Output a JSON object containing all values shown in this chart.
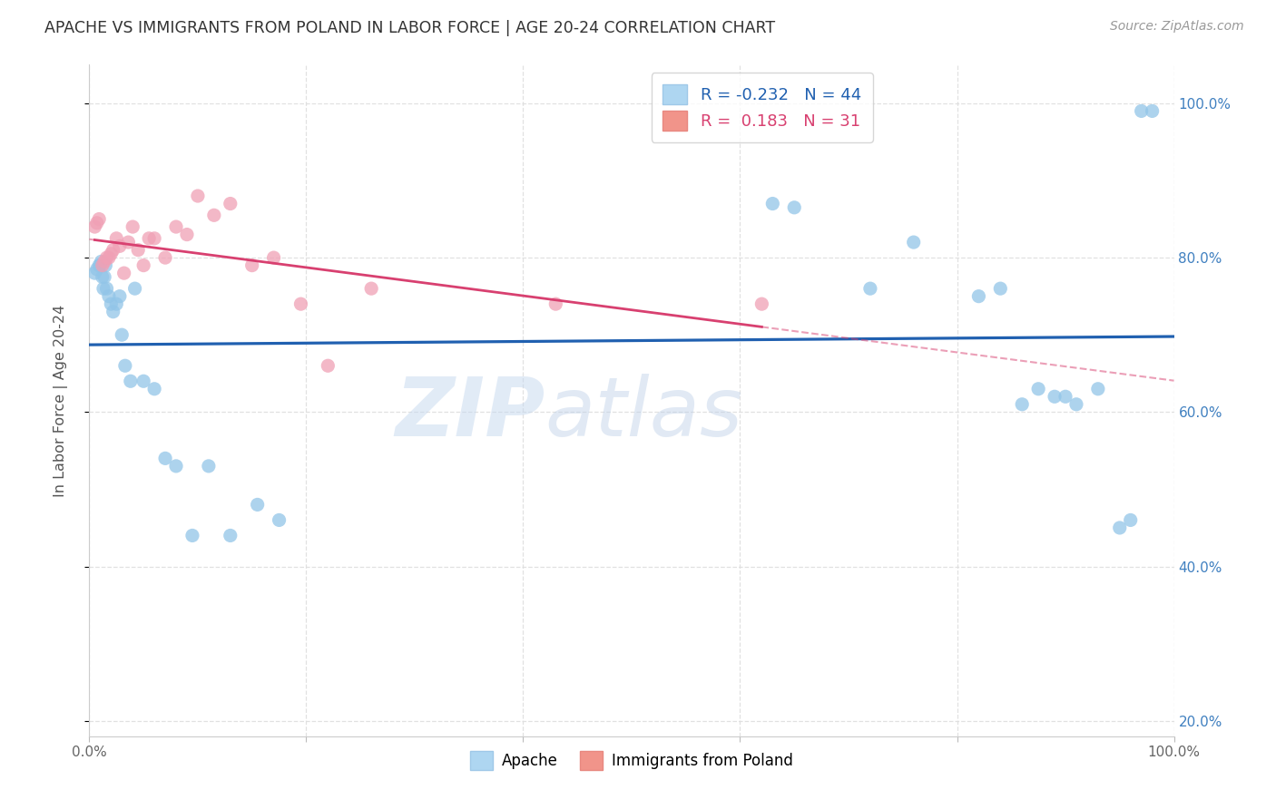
{
  "title": "APACHE VS IMMIGRANTS FROM POLAND IN LABOR FORCE | AGE 20-24 CORRELATION CHART",
  "source": "Source: ZipAtlas.com",
  "ylabel": "In Labor Force | Age 20-24",
  "xlim": [
    0.0,
    1.0
  ],
  "ylim": [
    0.18,
    1.05
  ],
  "ytick_positions": [
    0.2,
    0.4,
    0.6,
    0.8,
    1.0
  ],
  "ytick_labels": [
    "20.0%",
    "40.0%",
    "60.0%",
    "80.0%",
    "100.0%"
  ],
  "xtick_positions": [
    0.0,
    0.2,
    0.4,
    0.6,
    0.8,
    1.0
  ],
  "xtick_labels": [
    "0.0%",
    "",
    "",
    "",
    "",
    "100.0%"
  ],
  "apache_x": [
    0.005,
    0.007,
    0.009,
    0.01,
    0.011,
    0.012,
    0.013,
    0.014,
    0.015,
    0.016,
    0.018,
    0.02,
    0.022,
    0.025,
    0.028,
    0.03,
    0.033,
    0.038,
    0.042,
    0.05,
    0.06,
    0.07,
    0.08,
    0.095,
    0.11,
    0.13,
    0.155,
    0.175,
    0.63,
    0.65,
    0.72,
    0.76,
    0.82,
    0.84,
    0.86,
    0.875,
    0.89,
    0.9,
    0.91,
    0.93,
    0.95,
    0.96,
    0.97,
    0.98
  ],
  "apache_y": [
    0.78,
    0.785,
    0.79,
    0.79,
    0.795,
    0.775,
    0.76,
    0.775,
    0.79,
    0.76,
    0.75,
    0.74,
    0.73,
    0.74,
    0.75,
    0.7,
    0.66,
    0.64,
    0.76,
    0.64,
    0.63,
    0.54,
    0.53,
    0.44,
    0.53,
    0.44,
    0.48,
    0.46,
    0.87,
    0.865,
    0.76,
    0.82,
    0.75,
    0.76,
    0.61,
    0.63,
    0.62,
    0.62,
    0.61,
    0.63,
    0.45,
    0.46,
    0.99,
    0.99
  ],
  "poland_x": [
    0.005,
    0.007,
    0.009,
    0.012,
    0.014,
    0.016,
    0.018,
    0.02,
    0.022,
    0.025,
    0.028,
    0.032,
    0.036,
    0.04,
    0.045,
    0.05,
    0.055,
    0.06,
    0.07,
    0.08,
    0.09,
    0.1,
    0.115,
    0.13,
    0.15,
    0.17,
    0.195,
    0.22,
    0.26,
    0.43,
    0.62
  ],
  "poland_y": [
    0.84,
    0.845,
    0.85,
    0.79,
    0.795,
    0.8,
    0.8,
    0.805,
    0.81,
    0.825,
    0.815,
    0.78,
    0.82,
    0.84,
    0.81,
    0.79,
    0.825,
    0.825,
    0.8,
    0.84,
    0.83,
    0.88,
    0.855,
    0.87,
    0.79,
    0.8,
    0.74,
    0.66,
    0.76,
    0.74,
    0.74
  ],
  "apache_color": "#92C5E8",
  "poland_color": "#F0A0B5",
  "apache_line_color": "#2060B0",
  "poland_line_color": "#D84070",
  "apache_R": -0.232,
  "apache_N": 44,
  "poland_R": 0.183,
  "poland_N": 31,
  "background_color": "#FFFFFF",
  "grid_color": "#DEDEDE",
  "right_tick_color": "#4080C0"
}
